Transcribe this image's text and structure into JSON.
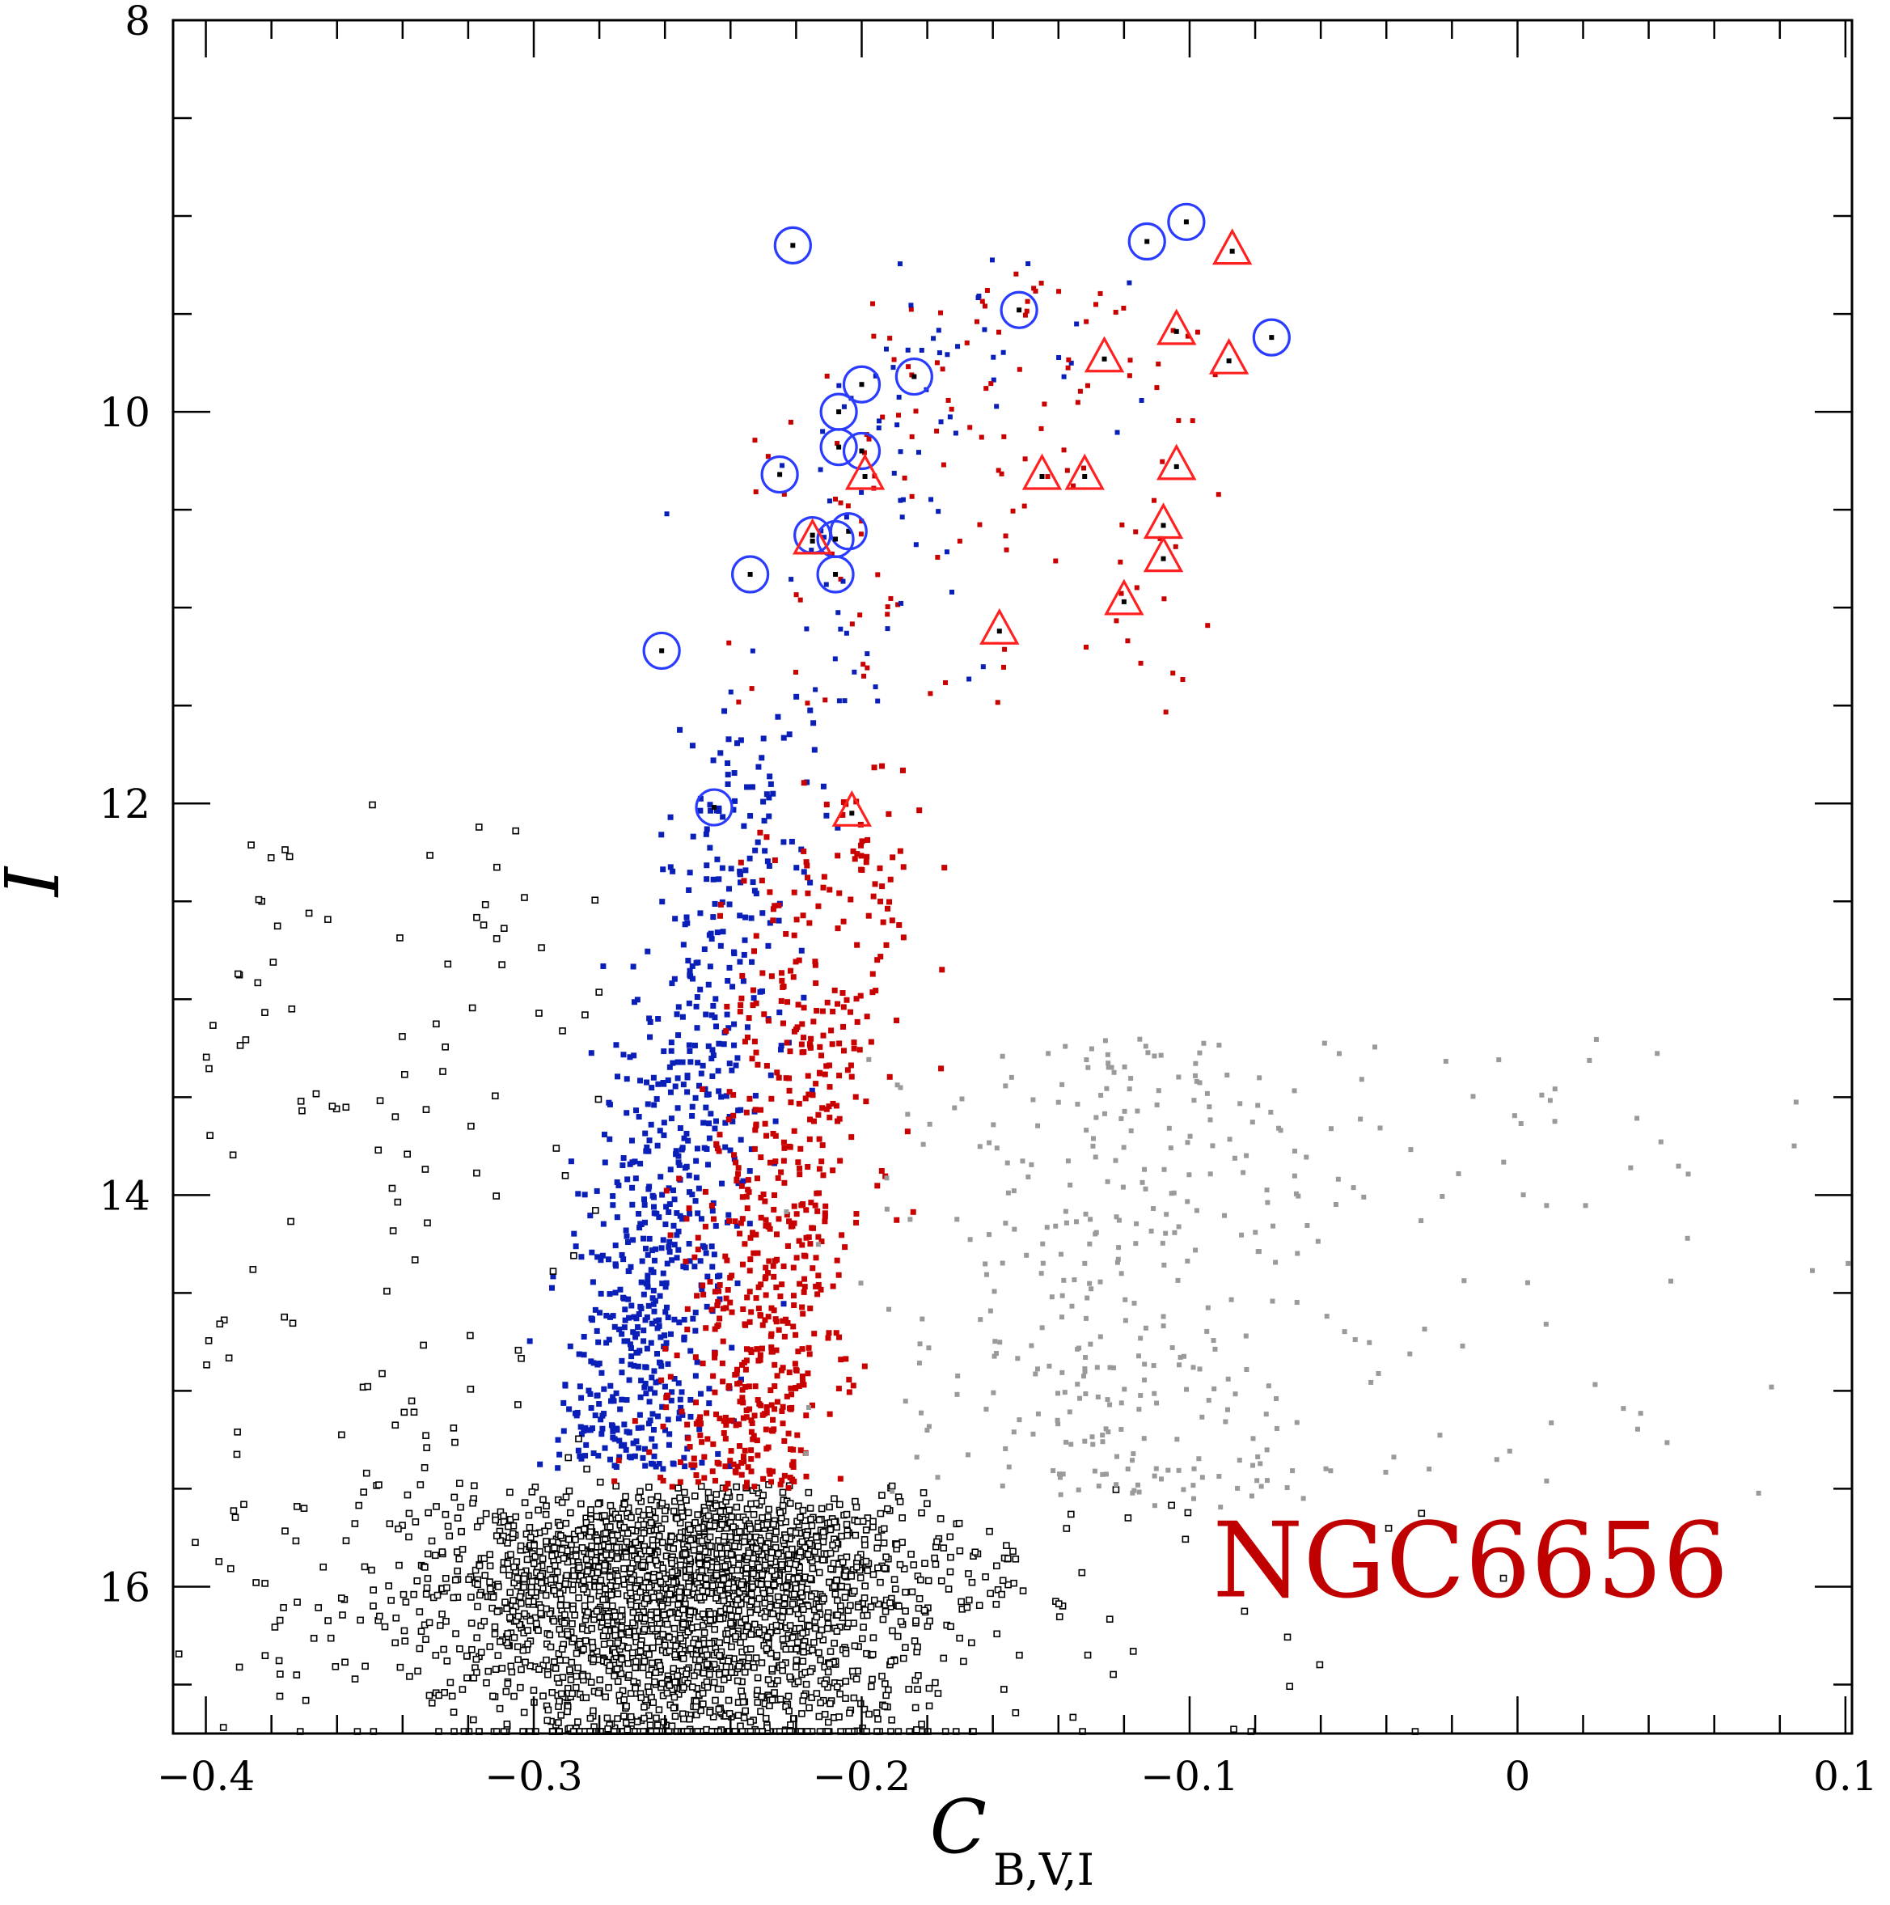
{
  "chart_data": {
    "type": "scatter",
    "title": "",
    "annotation": "NGC6656",
    "annotation_color": "#c00000",
    "xlabel": "C",
    "xlabel_sub": "B,V,I",
    "ylabel": "I",
    "xlim": [
      -0.41,
      0.102
    ],
    "ylim": [
      16.75,
      8.0
    ],
    "y_inverted": true,
    "grid": false,
    "x_ticks": [
      -0.4,
      -0.3,
      -0.2,
      -0.1,
      0,
      0.1
    ],
    "x_tick_labels": [
      "−0.4",
      "−0.3",
      "−0.2",
      "−0.1",
      "0",
      "0.1"
    ],
    "y_ticks": [
      8,
      10,
      12,
      14,
      16
    ],
    "y_tick_labels": [
      "8",
      "10",
      "12",
      "14",
      "16"
    ],
    "colors": {
      "blue": "#0a1fb8",
      "red": "#c80000",
      "gray": "#9a9a9a",
      "black": "#000000",
      "blue_circle": "#2a3cff",
      "red_triangle": "#ff2020"
    },
    "series": [
      {
        "marker": "circle-open",
        "color": "blue_circle",
        "points": [
          [
            -0.221,
            9.15
          ],
          [
            -0.101,
            9.03
          ],
          [
            -0.113,
            9.13
          ],
          [
            -0.152,
            9.48
          ],
          [
            -0.075,
            9.62
          ],
          [
            -0.2,
            9.86
          ],
          [
            -0.184,
            9.82
          ],
          [
            -0.207,
            10.0
          ],
          [
            -0.207,
            10.18
          ],
          [
            -0.2,
            10.2
          ],
          [
            -0.225,
            10.32
          ],
          [
            -0.215,
            10.63
          ],
          [
            -0.204,
            10.61
          ],
          [
            -0.208,
            10.65
          ],
          [
            -0.234,
            10.83
          ],
          [
            -0.208,
            10.83
          ],
          [
            -0.261,
            11.22
          ],
          [
            -0.245,
            12.02
          ]
        ]
      },
      {
        "marker": "triangle-open",
        "color": "red_triangle",
        "points": [
          [
            -0.087,
            9.18
          ],
          [
            -0.104,
            9.59
          ],
          [
            -0.126,
            9.73
          ],
          [
            -0.088,
            9.74
          ],
          [
            -0.199,
            10.33
          ],
          [
            -0.145,
            10.33
          ],
          [
            -0.132,
            10.33
          ],
          [
            -0.104,
            10.28
          ],
          [
            -0.215,
            10.66
          ],
          [
            -0.108,
            10.58
          ],
          [
            -0.108,
            10.75
          ],
          [
            -0.12,
            10.97
          ],
          [
            -0.158,
            11.12
          ],
          [
            -0.203,
            12.05
          ]
        ]
      }
    ]
  }
}
